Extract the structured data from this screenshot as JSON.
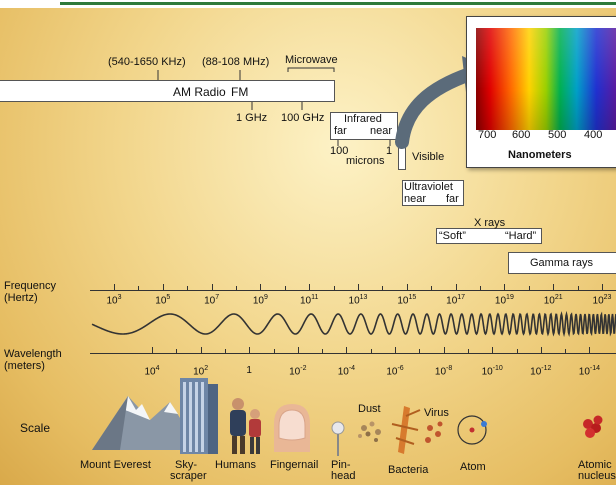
{
  "bands": {
    "am_range": "(540-1650 KHz)",
    "fm_range": "(88-108 MHz)",
    "microwave": "Microwave",
    "am_radio": "AM Radio",
    "fm": "FM",
    "ghz_1": "1 GHz",
    "ghz_100": "100 GHz",
    "infrared": "Infrared",
    "ir_far": "far",
    "ir_near": "near",
    "tick_100": "100",
    "tick_1": "1",
    "microns": "microns",
    "visible": "Visible",
    "ultraviolet": "Ultraviolet",
    "uv_near": "near",
    "uv_far": "far",
    "xrays": "X rays",
    "soft": "“Soft”",
    "hard": "“Hard”",
    "gamma": "Gamma rays"
  },
  "spectrum": {
    "ticks": [
      "700",
      "600",
      "500",
      "400"
    ],
    "units": "Nanometers"
  },
  "frequency": {
    "label_line1": "Frequency",
    "label_line2": "(Hertz)",
    "ticks": [
      {
        "base": "10",
        "exp": "3"
      },
      {
        "base": "10",
        "exp": "5"
      },
      {
        "base": "10",
        "exp": "7"
      },
      {
        "base": "10",
        "exp": "9"
      },
      {
        "base": "10",
        "exp": "11"
      },
      {
        "base": "10",
        "exp": "13"
      },
      {
        "base": "10",
        "exp": "15"
      },
      {
        "base": "10",
        "exp": "17"
      },
      {
        "base": "10",
        "exp": "19"
      },
      {
        "base": "10",
        "exp": "21"
      },
      {
        "base": "10",
        "exp": "23"
      }
    ]
  },
  "wavelength": {
    "label_line1": "Wavelength",
    "label_line2": "(meters)",
    "ticks": [
      {
        "base": "10",
        "exp": "4"
      },
      {
        "base": "10",
        "exp": "2"
      },
      {
        "base": "1",
        "exp": ""
      },
      {
        "base": "10",
        "exp": "-2"
      },
      {
        "base": "10",
        "exp": "-4"
      },
      {
        "base": "10",
        "exp": "-6"
      },
      {
        "base": "10",
        "exp": "-8"
      },
      {
        "base": "10",
        "exp": "-10"
      },
      {
        "base": "10",
        "exp": "-12"
      },
      {
        "base": "10",
        "exp": "-14"
      }
    ]
  },
  "scale": {
    "label": "Scale",
    "items": {
      "mount_everest": "Mount Everest",
      "skyscraper_1": "Sky-",
      "skyscraper_2": "scraper",
      "humans": "Humans",
      "fingernail": "Fingernail",
      "pinhead_1": "Pin-",
      "pinhead_2": "head",
      "dust": "Dust",
      "virus": "Virus",
      "bacteria": "Bacteria",
      "atom": "Atom",
      "nucleus_1": "Atomic",
      "nucleus_2": "nucleus"
    }
  },
  "colors": {
    "background": "#f2d68c",
    "wave": "#333333",
    "accent_line": "#2f7a3a",
    "arrow": "#5b6b7a"
  }
}
